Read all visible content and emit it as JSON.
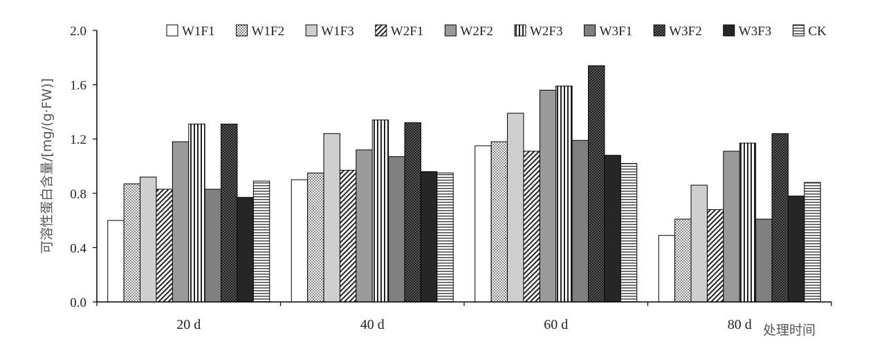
{
  "chart_data": {
    "type": "bar",
    "title": "",
    "ylabel": "可溶性蛋白含量/[mg/(g·FW)]",
    "xlabel": "处理时间",
    "ylim": [
      0.0,
      2.0
    ],
    "yticks": [
      "0.0",
      "0.4",
      "0.8",
      "1.2",
      "1.6",
      "2.0"
    ],
    "categories": [
      "20 d",
      "40 d",
      "60 d",
      "80 d"
    ],
    "legend_position": "top",
    "grid": false,
    "series": [
      {
        "name": "W1F1",
        "values": [
          0.6,
          0.9,
          1.15,
          0.49
        ],
        "color": "#ffffff",
        "pattern": "none"
      },
      {
        "name": "W1F2",
        "values": [
          0.87,
          0.95,
          1.18,
          0.61
        ],
        "color": "#b5b5b5",
        "pattern": "dots"
      },
      {
        "name": "W1F3",
        "values": [
          0.92,
          1.24,
          1.39,
          0.86
        ],
        "color": "#cfcfcf",
        "pattern": "none"
      },
      {
        "name": "W2F1",
        "values": [
          0.83,
          0.97,
          1.11,
          0.68
        ],
        "color": "#ffffff",
        "pattern": "diagonal"
      },
      {
        "name": "W2F2",
        "values": [
          1.18,
          1.12,
          1.56,
          1.11
        ],
        "color": "#9a9a9a",
        "pattern": "none"
      },
      {
        "name": "W2F3",
        "values": [
          1.31,
          1.34,
          1.59,
          1.17
        ],
        "color": "#ffffff",
        "pattern": "vertical"
      },
      {
        "name": "W3F1",
        "values": [
          0.83,
          1.07,
          1.19,
          0.61
        ],
        "color": "#808080",
        "pattern": "none"
      },
      {
        "name": "W3F2",
        "values": [
          1.31,
          1.32,
          1.74,
          1.24
        ],
        "color": "#4a4a4a",
        "pattern": "checker"
      },
      {
        "name": "W3F3",
        "values": [
          0.77,
          0.96,
          1.08,
          0.78
        ],
        "color": "#262626",
        "pattern": "none"
      },
      {
        "name": "CK",
        "values": [
          0.89,
          0.95,
          1.02,
          0.88
        ],
        "color": "#ffffff",
        "pattern": "horizontal"
      }
    ]
  }
}
